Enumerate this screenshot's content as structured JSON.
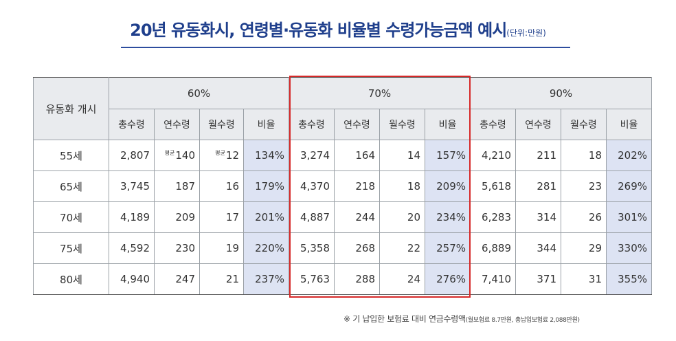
{
  "title": {
    "main": "20년 유동화시, 연령별·유동화 비율별 수령가능금액 예시",
    "unit": "(단위:만원)"
  },
  "table": {
    "corner_label": "유동화 개시",
    "groups": [
      "60%",
      "70%",
      "90%"
    ],
    "subheaders": [
      "총수령",
      "연수령",
      "월수령",
      "비율"
    ],
    "avg_tag": "평균",
    "rows": [
      {
        "age": "55세",
        "cells": [
          [
            "2,807",
            "140",
            "12",
            "134%"
          ],
          [
            "3,274",
            "164",
            "14",
            "157%"
          ],
          [
            "4,210",
            "211",
            "18",
            "202%"
          ]
        ]
      },
      {
        "age": "65세",
        "cells": [
          [
            "3,745",
            "187",
            "16",
            "179%"
          ],
          [
            "4,370",
            "218",
            "18",
            "209%"
          ],
          [
            "5,618",
            "281",
            "23",
            "269%"
          ]
        ]
      },
      {
        "age": "70세",
        "cells": [
          [
            "4,189",
            "209",
            "17",
            "201%"
          ],
          [
            "4,887",
            "244",
            "20",
            "234%"
          ],
          [
            "6,283",
            "314",
            "26",
            "301%"
          ]
        ]
      },
      {
        "age": "75세",
        "cells": [
          [
            "4,592",
            "230",
            "19",
            "220%"
          ],
          [
            "5,358",
            "268",
            "22",
            "257%"
          ],
          [
            "6,889",
            "344",
            "29",
            "330%"
          ]
        ]
      },
      {
        "age": "80세",
        "cells": [
          [
            "4,940",
            "247",
            "21",
            "237%"
          ],
          [
            "5,763",
            "288",
            "24",
            "276%"
          ],
          [
            "7,410",
            "371",
            "31",
            "355%"
          ]
        ]
      }
    ]
  },
  "footnote": {
    "main": "※ 기 납입한 보험료 대비 연금수령액",
    "detail": "(월보험료 8.7만원, 총납입보험료 2,088만원)"
  },
  "colors": {
    "title": "#1f3f8c",
    "highlight_border": "#d62828",
    "ratio_fill": "#dde3f3",
    "header_fill": "#e9ebee"
  }
}
